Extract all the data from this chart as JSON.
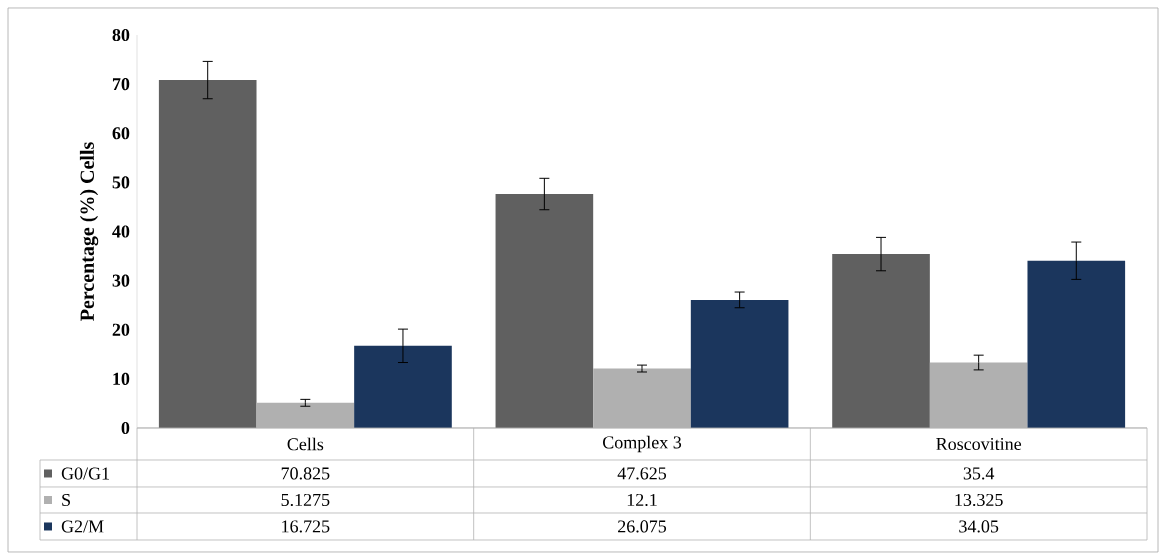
{
  "chart_data": {
    "type": "bar",
    "ylabel": "Percentage (%) Cells",
    "categories": [
      "Cells",
      "Complex 3",
      "Roscovitine"
    ],
    "series": [
      {
        "name": "G0/G1",
        "color": "#606060",
        "values": [
          70.825,
          47.625,
          35.4
        ],
        "errors": [
          3.8,
          3.2,
          3.4
        ]
      },
      {
        "name": "S",
        "color": "#b0b0b0",
        "values": [
          5.1275,
          12.1,
          13.325
        ],
        "errors": [
          0.7,
          0.7,
          1.5
        ]
      },
      {
        "name": "G2/M",
        "color": "#1b365d",
        "values": [
          16.725,
          26.075,
          34.05
        ],
        "errors": [
          3.4,
          1.6,
          3.8
        ]
      }
    ],
    "ylim": [
      0,
      80
    ],
    "yticks": [
      0,
      10,
      20,
      30,
      40,
      50,
      60,
      70,
      80
    ],
    "grid": false,
    "legend": "bottom",
    "data_labels": true
  }
}
